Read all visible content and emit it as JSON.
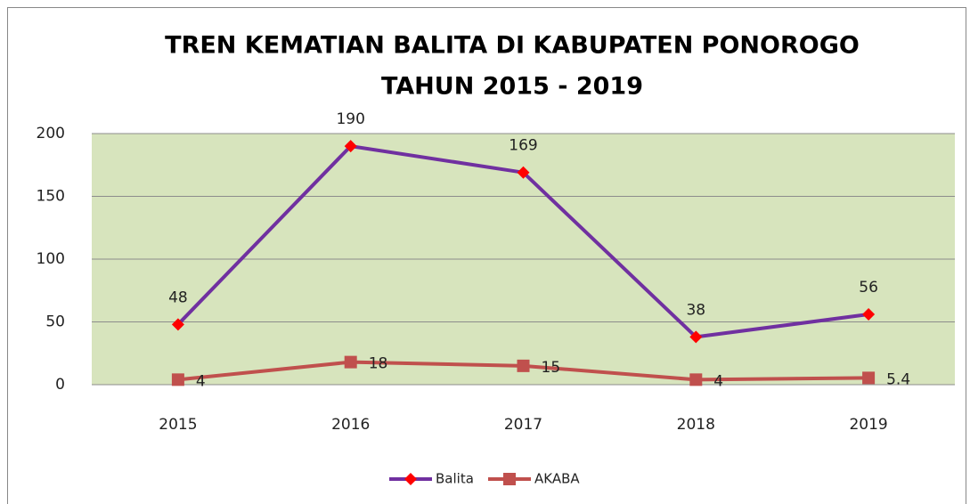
{
  "chart_data": {
    "type": "line",
    "title": "TREN KEMATIAN BALITA DI KABUPATEN PONOROGO",
    "subtitle": "TAHUN 2015 - 2019",
    "categories": [
      "2015",
      "2016",
      "2017",
      "2018",
      "2019"
    ],
    "series": [
      {
        "name": "Balita",
        "color": "#7030a0",
        "marker": "diamond",
        "marker_color": "#ff0000",
        "label_position": "above",
        "values": [
          48,
          190,
          169,
          38,
          56
        ]
      },
      {
        "name": "AKABA",
        "color": "#c0504d",
        "marker": "square",
        "marker_color": "#c0504d",
        "label_position": "right",
        "values": [
          4,
          18,
          15,
          4,
          5.4
        ]
      }
    ],
    "ylim": [
      0,
      200
    ],
    "yticks": [
      0,
      50,
      100,
      150,
      200
    ],
    "grid": true,
    "plot_background": "#d7e4bd",
    "legend": "bottom"
  }
}
